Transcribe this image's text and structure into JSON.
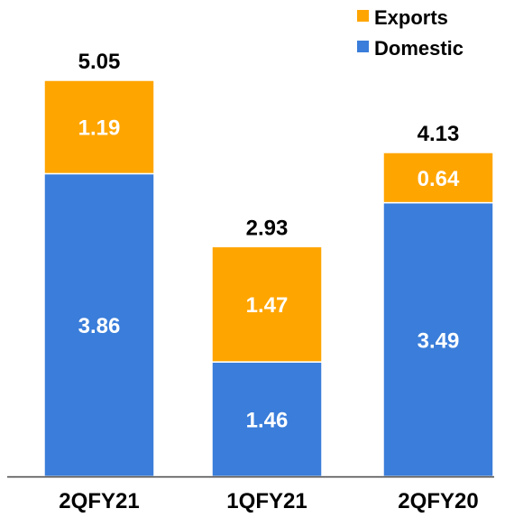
{
  "chart_data": {
    "type": "bar",
    "stacked": true,
    "categories": [
      "2QFY21",
      "1QFY21",
      "2QFY20"
    ],
    "series": [
      {
        "name": "Domestic",
        "values": [
          3.86,
          1.46,
          3.49
        ],
        "color": "#3A7DDA"
      },
      {
        "name": "Exports",
        "values": [
          1.19,
          1.47,
          0.64
        ],
        "color": "#FFA500"
      }
    ],
    "totals": [
      "5.05",
      "2.93",
      "4.13"
    ],
    "segment_labels": [
      [
        "3.86",
        "1.46",
        "3.49"
      ],
      [
        "1.19",
        "1.47",
        "0.64"
      ]
    ],
    "legend_position": "top-right",
    "ylim": [
      0,
      5.05
    ],
    "grid": false
  }
}
